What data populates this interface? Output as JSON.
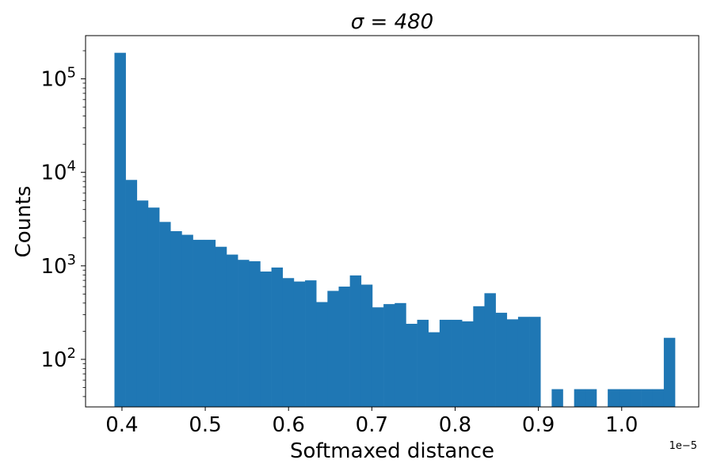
{
  "chart_data": {
    "type": "bar",
    "title": "σ = 480",
    "xlabel": "Softmaxed distance",
    "ylabel": "Counts",
    "x_offset_label": "1e−5",
    "yscale": "log",
    "xlim": [
      0.3563,
      1.0925
    ],
    "ylim": [
      31,
      290000
    ],
    "x_ticks": [
      0.4,
      0.5,
      0.6,
      0.7,
      0.8,
      0.9,
      1.0
    ],
    "x_tick_labels": [
      "0.4",
      "0.5",
      "0.6",
      "0.7",
      "0.8",
      "0.9",
      "1.0"
    ],
    "y_ticks": [
      {
        "base": "10",
        "exp": "2",
        "value": 100
      },
      {
        "base": "10",
        "exp": "3",
        "value": 1000
      },
      {
        "base": "10",
        "exp": "4",
        "value": 10000
      },
      {
        "base": "10",
        "exp": "5",
        "value": 100000
      }
    ],
    "bin_start": 0.391,
    "bin_width": 0.01346,
    "values": [
      190000,
      8300,
      5000,
      4200,
      2950,
      2350,
      2150,
      1900,
      1900,
      1600,
      1320,
      1160,
      1120,
      870,
      960,
      740,
      680,
      700,
      410,
      540,
      600,
      790,
      630,
      360,
      390,
      400,
      240,
      265,
      195,
      265,
      265,
      255,
      370,
      510,
      315,
      268,
      285,
      285,
      0,
      48,
      0,
      48,
      48,
      0,
      48,
      48,
      48,
      48,
      48,
      170
    ],
    "color": "#1f77b4",
    "grid": false
  }
}
